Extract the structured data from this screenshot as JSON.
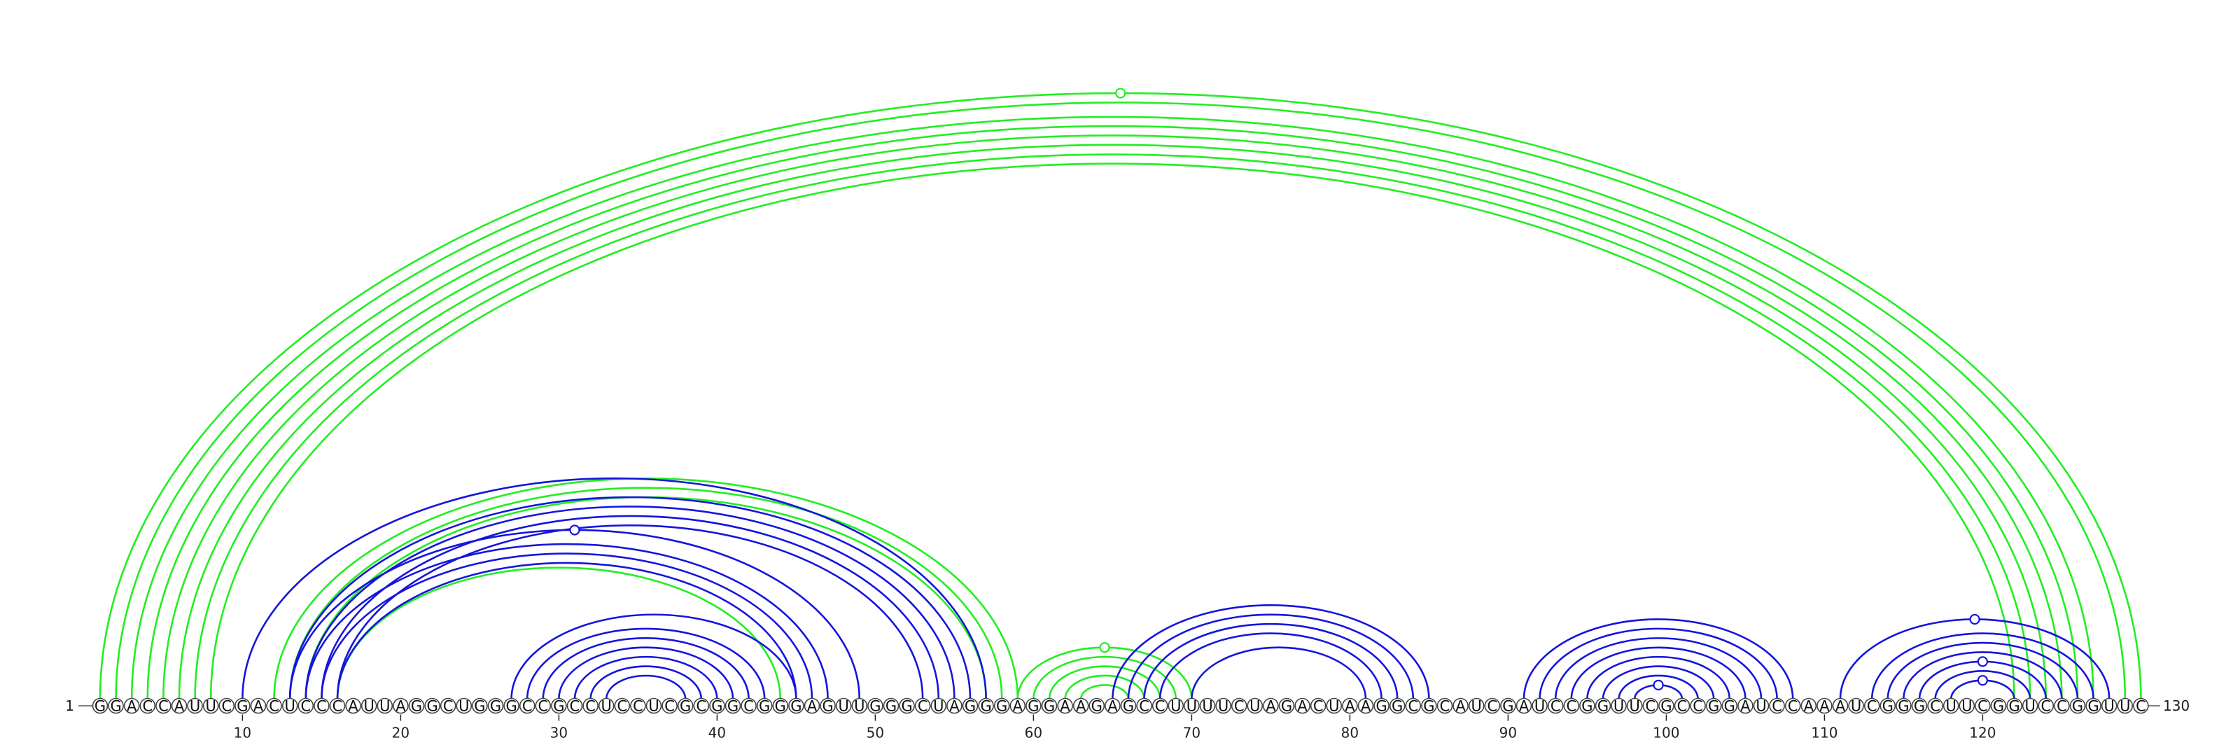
{
  "sequence": "GGACCAUUCGACUCCCAUUAGGCUGGGCCGCCUCCUCGCGGCGGGAGUUGGGCUAGGGAGGAAGAGCCUUUUCUAGACUAAGGCGCAUCGAUCCGGUUCGCCGGAUCCAAAUCGGGCUUCGGUCCGGUUC",
  "start_label": "1",
  "end_label": "130",
  "ticks": [
    "10",
    "20",
    "30",
    "40",
    "50",
    "60",
    "70",
    "80",
    "90",
    "100",
    "110",
    "120"
  ],
  "colors": {
    "green": "#22ee22",
    "blue": "#1515dd",
    "nucleotide_outline": "#444444"
  },
  "arcs": [
    {
      "i": 1,
      "j": 130,
      "color": "green"
    },
    {
      "i": 2,
      "j": 129,
      "color": "green"
    },
    {
      "i": 3,
      "j": 127,
      "color": "green"
    },
    {
      "i": 4,
      "j": 126,
      "color": "green"
    },
    {
      "i": 5,
      "j": 125,
      "color": "green"
    },
    {
      "i": 6,
      "j": 124,
      "color": "green"
    },
    {
      "i": 7,
      "j": 123,
      "color": "green"
    },
    {
      "i": 8,
      "j": 122,
      "color": "green"
    },
    {
      "i": 12,
      "j": 59,
      "color": "green"
    },
    {
      "i": 13,
      "j": 58,
      "color": "green"
    },
    {
      "i": 14,
      "j": 57,
      "color": "green"
    },
    {
      "i": 16,
      "j": 44,
      "color": "green"
    },
    {
      "i": 10,
      "j": 57,
      "color": "blue"
    },
    {
      "i": 13,
      "j": 56,
      "color": "blue"
    },
    {
      "i": 14,
      "j": 55,
      "color": "blue"
    },
    {
      "i": 15,
      "j": 54,
      "color": "blue"
    },
    {
      "i": 16,
      "j": 53,
      "color": "blue"
    },
    {
      "i": 13,
      "j": 49,
      "color": "blue"
    },
    {
      "i": 14,
      "j": 47,
      "color": "blue"
    },
    {
      "i": 15,
      "j": 46,
      "color": "blue"
    },
    {
      "i": 16,
      "j": 45,
      "color": "blue"
    },
    {
      "i": 27,
      "j": 45,
      "color": "blue"
    },
    {
      "i": 28,
      "j": 43,
      "color": "blue"
    },
    {
      "i": 29,
      "j": 42,
      "color": "blue"
    },
    {
      "i": 30,
      "j": 41,
      "color": "blue"
    },
    {
      "i": 31,
      "j": 40,
      "color": "blue"
    },
    {
      "i": 32,
      "j": 39,
      "color": "blue"
    },
    {
      "i": 33,
      "j": 38,
      "color": "blue"
    },
    {
      "i": 59,
      "j": 70,
      "color": "green"
    },
    {
      "i": 60,
      "j": 69,
      "color": "green"
    },
    {
      "i": 61,
      "j": 68,
      "color": "green"
    },
    {
      "i": 62,
      "j": 67,
      "color": "green"
    },
    {
      "i": 63,
      "j": 66,
      "color": "green"
    },
    {
      "i": 65,
      "j": 85,
      "color": "blue"
    },
    {
      "i": 66,
      "j": 84,
      "color": "blue"
    },
    {
      "i": 67,
      "j": 83,
      "color": "blue"
    },
    {
      "i": 68,
      "j": 82,
      "color": "blue"
    },
    {
      "i": 70,
      "j": 81,
      "color": "blue"
    },
    {
      "i": 91,
      "j": 108,
      "color": "blue"
    },
    {
      "i": 92,
      "j": 107,
      "color": "blue"
    },
    {
      "i": 93,
      "j": 106,
      "color": "blue"
    },
    {
      "i": 94,
      "j": 105,
      "color": "blue"
    },
    {
      "i": 95,
      "j": 104,
      "color": "blue"
    },
    {
      "i": 96,
      "j": 103,
      "color": "blue"
    },
    {
      "i": 97,
      "j": 102,
      "color": "blue"
    },
    {
      "i": 98,
      "j": 101,
      "color": "blue"
    },
    {
      "i": 111,
      "j": 128,
      "color": "blue"
    },
    {
      "i": 113,
      "j": 127,
      "color": "blue"
    },
    {
      "i": 114,
      "j": 126,
      "color": "blue"
    },
    {
      "i": 115,
      "j": 125,
      "color": "blue"
    },
    {
      "i": 116,
      "j": 124,
      "color": "blue"
    },
    {
      "i": 117,
      "j": 123,
      "color": "blue"
    },
    {
      "i": 118,
      "j": 122,
      "color": "blue"
    }
  ],
  "markers": [
    {
      "i": 1,
      "j": 130,
      "color": "green"
    },
    {
      "i": 13,
      "j": 49,
      "color": "blue"
    },
    {
      "i": 59,
      "j": 70,
      "color": "green"
    },
    {
      "i": 98,
      "j": 101,
      "color": "blue"
    },
    {
      "i": 111,
      "j": 128,
      "color": "blue"
    },
    {
      "i": 116,
      "j": 124,
      "color": "blue"
    },
    {
      "i": 118,
      "j": 122,
      "color": "blue"
    }
  ]
}
